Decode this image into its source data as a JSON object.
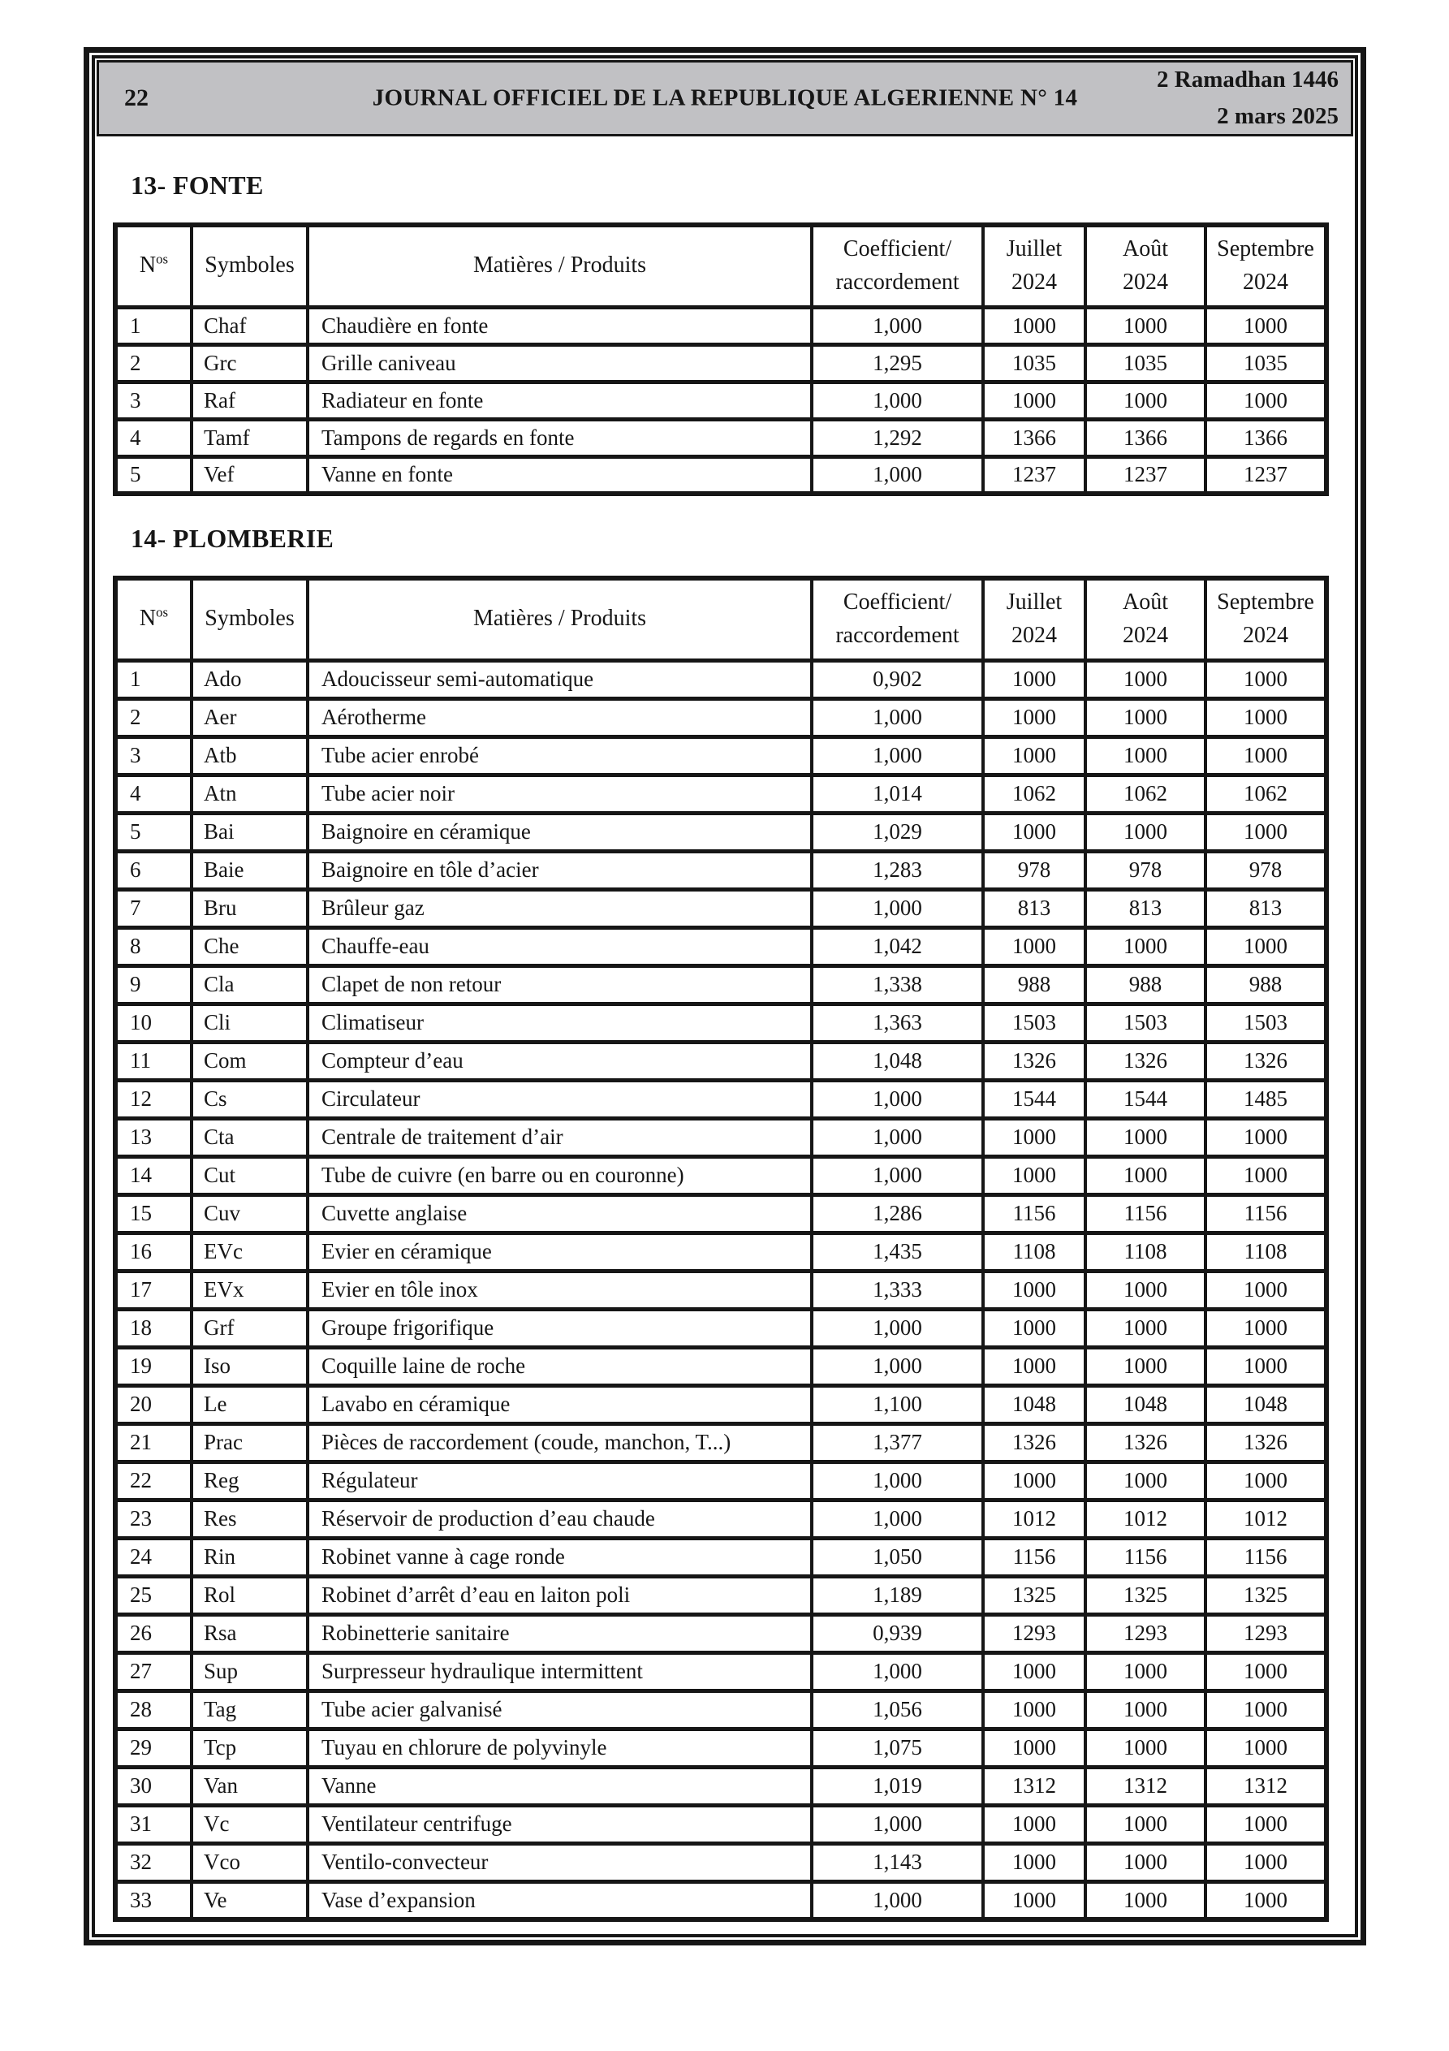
{
  "page": {
    "page_number": "22",
    "journal_title": "JOURNAL OFFICIEL DE LA REPUBLIQUE ALGERIENNE N° 14",
    "date_hijri": "2 Ramadhan 1446",
    "date_gregorian": "2 mars 2025"
  },
  "columns": {
    "no_base": "N",
    "no_sup": "os",
    "symbols": "Symboles",
    "products": "Matières / Produits",
    "coefficient_line1": "Coefficient/",
    "coefficient_line2": "raccordement",
    "july_line1": "Juillet",
    "july_line2": "2024",
    "august_line1": "Août",
    "august_line2": "2024",
    "september_line1": "Septembre",
    "september_line2": "2024"
  },
  "sections": [
    {
      "title": "13- FONTE",
      "rows": [
        [
          "1",
          "Chaf",
          "Chaudière en fonte",
          "1,000",
          "1000",
          "1000",
          "1000"
        ],
        [
          "2",
          "Grc",
          "Grille caniveau",
          "1,295",
          "1035",
          "1035",
          "1035"
        ],
        [
          "3",
          "Raf",
          "Radiateur en fonte",
          "1,000",
          "1000",
          "1000",
          "1000"
        ],
        [
          "4",
          "Tamf",
          "Tampons de regards en fonte",
          "1,292",
          "1366",
          "1366",
          "1366"
        ],
        [
          "5",
          "Vef",
          "Vanne en fonte",
          "1,000",
          "1237",
          "1237",
          "1237"
        ]
      ]
    },
    {
      "title": "14- PLOMBERIE",
      "rows": [
        [
          "1",
          "Ado",
          "Adoucisseur semi-automatique",
          "0,902",
          "1000",
          "1000",
          "1000"
        ],
        [
          "2",
          "Aer",
          "Aérotherme",
          "1,000",
          "1000",
          "1000",
          "1000"
        ],
        [
          "3",
          "Atb",
          "Tube acier enrobé",
          "1,000",
          "1000",
          "1000",
          "1000"
        ],
        [
          "4",
          "Atn",
          "Tube acier noir",
          "1,014",
          "1062",
          "1062",
          "1062"
        ],
        [
          "5",
          "Bai",
          "Baignoire en céramique",
          "1,029",
          "1000",
          "1000",
          "1000"
        ],
        [
          "6",
          "Baie",
          "Baignoire en tôle d’acier",
          "1,283",
          "978",
          "978",
          "978"
        ],
        [
          "7",
          "Bru",
          "Brûleur gaz",
          "1,000",
          "813",
          "813",
          "813"
        ],
        [
          "8",
          "Che",
          "Chauffe-eau",
          "1,042",
          "1000",
          "1000",
          "1000"
        ],
        [
          "9",
          "Cla",
          "Clapet de non retour",
          "1,338",
          "988",
          "988",
          "988"
        ],
        [
          "10",
          "Cli",
          "Climatiseur",
          "1,363",
          "1503",
          "1503",
          "1503"
        ],
        [
          "11",
          "Com",
          "Compteur d’eau",
          "1,048",
          "1326",
          "1326",
          "1326"
        ],
        [
          "12",
          "Cs",
          "Circulateur",
          "1,000",
          "1544",
          "1544",
          "1485"
        ],
        [
          "13",
          "Cta",
          "Centrale de traitement d’air",
          "1,000",
          "1000",
          "1000",
          "1000"
        ],
        [
          "14",
          "Cut",
          "Tube de cuivre (en barre ou en couronne)",
          "1,000",
          "1000",
          "1000",
          "1000"
        ],
        [
          "15",
          "Cuv",
          "Cuvette anglaise",
          "1,286",
          "1156",
          "1156",
          "1156"
        ],
        [
          "16",
          "EVc",
          "Evier en céramique",
          "1,435",
          "1108",
          "1108",
          "1108"
        ],
        [
          "17",
          "EVx",
          "Evier en tôle inox",
          "1,333",
          "1000",
          "1000",
          "1000"
        ],
        [
          "18",
          "Grf",
          "Groupe frigorifique",
          "1,000",
          "1000",
          "1000",
          "1000"
        ],
        [
          "19",
          "Iso",
          "Coquille laine de roche",
          "1,000",
          "1000",
          "1000",
          "1000"
        ],
        [
          "20",
          "Le",
          "Lavabo en céramique",
          "1,100",
          "1048",
          "1048",
          "1048"
        ],
        [
          "21",
          "Prac",
          "Pièces de raccordement (coude, manchon, T...)",
          "1,377",
          "1326",
          "1326",
          "1326"
        ],
        [
          "22",
          "Reg",
          "Régulateur",
          "1,000",
          "1000",
          "1000",
          "1000"
        ],
        [
          "23",
          "Res",
          "Réservoir de production d’eau chaude",
          "1,000",
          "1012",
          "1012",
          "1012"
        ],
        [
          "24",
          "Rin",
          "Robinet vanne à cage ronde",
          "1,050",
          "1156",
          "1156",
          "1156"
        ],
        [
          "25",
          "Rol",
          "Robinet d’arrêt d’eau en laiton poli",
          "1,189",
          "1325",
          "1325",
          "1325"
        ],
        [
          "26",
          "Rsa",
          "Robinetterie sanitaire",
          "0,939",
          "1293",
          "1293",
          "1293"
        ],
        [
          "27",
          "Sup",
          "Surpresseur hydraulique intermittent",
          "1,000",
          "1000",
          "1000",
          "1000"
        ],
        [
          "28",
          "Tag",
          "Tube acier galvanisé",
          "1,056",
          "1000",
          "1000",
          "1000"
        ],
        [
          "29",
          "Tcp",
          "Tuyau en chlorure de polyvinyle",
          "1,075",
          "1000",
          "1000",
          "1000"
        ],
        [
          "30",
          "Van",
          "Vanne",
          "1,019",
          "1312",
          "1312",
          "1312"
        ],
        [
          "31",
          "Vc",
          "Ventilateur centrifuge",
          "1,000",
          "1000",
          "1000",
          "1000"
        ],
        [
          "32",
          "Vco",
          "Ventilo-convecteur",
          "1,143",
          "1000",
          "1000",
          "1000"
        ],
        [
          "33",
          "Ve",
          "Vase d’expansion",
          "1,000",
          "1000",
          "1000",
          "1000"
        ]
      ]
    }
  ]
}
